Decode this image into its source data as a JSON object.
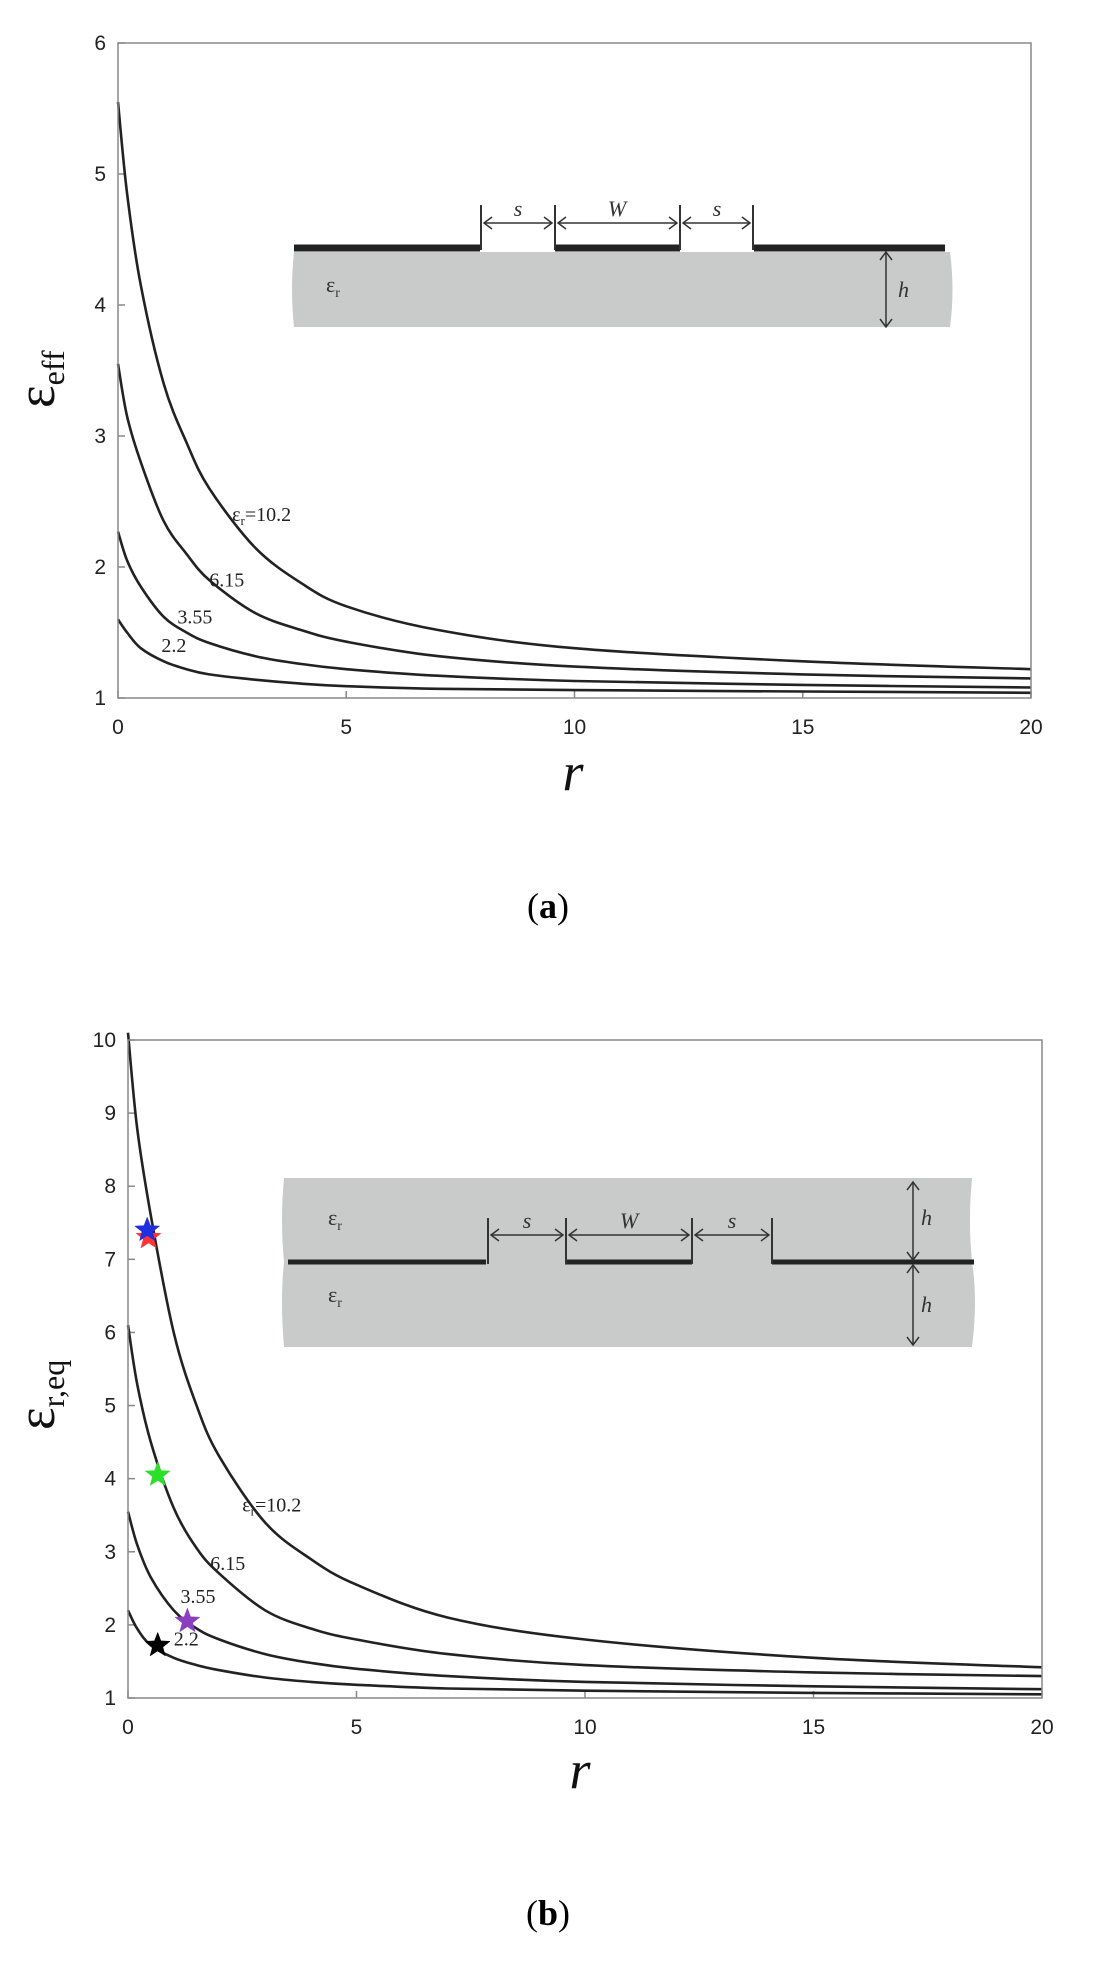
{
  "chart_data": [
    {
      "type": "line",
      "panel_label": "(a)",
      "caption": {
        "open": "(",
        "letter": "a",
        "close": ")"
      },
      "xlabel": "r",
      "ylabel": {
        "main": "ε",
        "sub": "eff"
      },
      "xlim": [
        0,
        20
      ],
      "ylim": [
        1,
        6
      ],
      "x_ticks": [
        "0",
        "5",
        "10",
        "15",
        "20"
      ],
      "y_ticks": [
        "1",
        "2",
        "3",
        "4",
        "5",
        "6"
      ],
      "grid": false,
      "series": [
        {
          "label": "εr=10.2",
          "x": [
            0,
            0.2,
            0.5,
            1,
            1.5,
            2,
            3,
            4,
            5,
            7,
            10,
            15,
            20
          ],
          "y": [
            5.55,
            4.85,
            4.15,
            3.4,
            2.95,
            2.6,
            2.15,
            1.88,
            1.7,
            1.52,
            1.38,
            1.28,
            1.22
          ]
        },
        {
          "label": "6.15",
          "x": [
            0,
            0.2,
            0.5,
            1,
            1.5,
            2,
            3,
            4,
            5,
            7,
            10,
            15,
            20
          ],
          "y": [
            3.55,
            3.15,
            2.8,
            2.35,
            2.1,
            1.9,
            1.65,
            1.52,
            1.43,
            1.32,
            1.24,
            1.18,
            1.15
          ]
        },
        {
          "label": "3.55",
          "x": [
            0,
            0.2,
            0.5,
            1,
            1.5,
            2,
            3,
            4,
            5,
            7,
            10,
            15,
            20
          ],
          "y": [
            2.27,
            2.05,
            1.85,
            1.62,
            1.5,
            1.42,
            1.32,
            1.26,
            1.22,
            1.17,
            1.13,
            1.1,
            1.08
          ]
        },
        {
          "label": "2.2",
          "x": [
            0,
            0.2,
            0.5,
            1,
            1.5,
            2,
            3,
            4,
            5,
            7,
            10,
            15,
            20
          ],
          "y": [
            1.6,
            1.5,
            1.38,
            1.28,
            1.22,
            1.18,
            1.14,
            1.11,
            1.09,
            1.07,
            1.06,
            1.05,
            1.04
          ]
        }
      ],
      "annotations": [
        {
          "prefix": "ε",
          "sub": "r",
          "text": "=10.2",
          "x": 2.5,
          "y": 2.35
        },
        {
          "text": "6.15",
          "x": 2.0,
          "y": 1.85
        },
        {
          "text": "3.55",
          "x": 1.3,
          "y": 1.57
        },
        {
          "text": "2.2",
          "x": 0.95,
          "y": 1.35
        }
      ],
      "inset": {
        "layers": "single",
        "labels": {
          "s": "s",
          "W": "W",
          "h": "h",
          "eps": "ε",
          "eps_sub": "r"
        }
      }
    },
    {
      "type": "line",
      "panel_label": "(b)",
      "caption": {
        "open": "(",
        "letter": "b",
        "close": ")"
      },
      "xlabel": "r",
      "ylabel": {
        "main": "ε",
        "sub": "r,eq"
      },
      "xlim": [
        0,
        20
      ],
      "ylim": [
        1,
        10
      ],
      "x_ticks": [
        "0",
        "5",
        "10",
        "15",
        "20"
      ],
      "y_ticks": [
        "1",
        "2",
        "3",
        "4",
        "5",
        "6",
        "7",
        "8",
        "9",
        "10"
      ],
      "grid": false,
      "series": [
        {
          "label": "εr=10.2",
          "x": [
            0,
            0.2,
            0.5,
            1,
            1.5,
            2,
            3,
            4,
            5,
            7,
            10,
            15,
            20
          ],
          "y": [
            10.1,
            8.8,
            7.6,
            6.0,
            5.0,
            4.3,
            3.4,
            2.9,
            2.55,
            2.1,
            1.8,
            1.55,
            1.42
          ]
        },
        {
          "label": "6.15",
          "x": [
            0,
            0.2,
            0.5,
            1,
            1.5,
            2,
            3,
            4,
            5,
            7,
            10,
            15,
            20
          ],
          "y": [
            6.1,
            5.3,
            4.5,
            3.6,
            3.05,
            2.7,
            2.2,
            1.95,
            1.8,
            1.6,
            1.45,
            1.35,
            1.3
          ]
        },
        {
          "label": "3.55",
          "x": [
            0,
            0.2,
            0.5,
            1,
            1.5,
            2,
            3,
            4,
            5,
            7,
            10,
            15,
            20
          ],
          "y": [
            3.55,
            3.1,
            2.65,
            2.2,
            1.95,
            1.8,
            1.6,
            1.48,
            1.4,
            1.3,
            1.22,
            1.16,
            1.12
          ]
        },
        {
          "label": "2.2",
          "x": [
            0,
            0.2,
            0.5,
            1,
            1.5,
            2,
            3,
            4,
            5,
            7,
            10,
            15,
            20
          ],
          "y": [
            2.2,
            1.95,
            1.72,
            1.55,
            1.45,
            1.38,
            1.28,
            1.22,
            1.18,
            1.13,
            1.1,
            1.07,
            1.05
          ]
        }
      ],
      "markers": [
        {
          "shape": "star",
          "color": "#ff3333",
          "x": 0.45,
          "y": 7.3
        },
        {
          "shape": "star",
          "color": "#1f2ee0",
          "x": 0.42,
          "y": 7.4
        },
        {
          "shape": "star",
          "color": "#2be02b",
          "x": 0.65,
          "y": 4.05
        },
        {
          "shape": "star",
          "color": "#8a3fbf",
          "x": 1.3,
          "y": 2.05
        },
        {
          "shape": "star",
          "color": "#000000",
          "x": 0.65,
          "y": 1.72
        }
      ],
      "annotations": [
        {
          "prefix": "ε",
          "sub": "r",
          "text": "=10.2",
          "x": 2.5,
          "y": 3.55
        },
        {
          "text": "6.15",
          "x": 1.8,
          "y": 2.75
        },
        {
          "text": "3.55",
          "x": 1.15,
          "y": 2.3
        },
        {
          "text": "2.2",
          "x": 1.0,
          "y": 1.72
        }
      ],
      "inset": {
        "layers": "double",
        "labels": {
          "s": "s",
          "W": "W",
          "h": "h",
          "eps": "ε",
          "eps_sub": "r"
        }
      }
    }
  ],
  "colors": {
    "curve": "#222222",
    "substrate": "#c8cbca",
    "metal": "#222222",
    "axis": "#888888"
  }
}
